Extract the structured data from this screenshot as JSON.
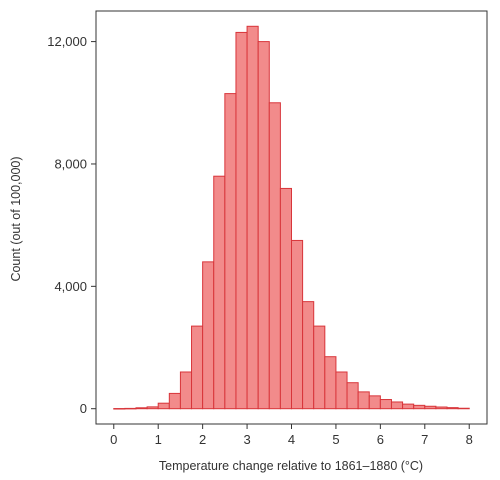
{
  "chart_data": {
    "type": "bar",
    "subtype": "histogram",
    "xlabel": "Temperature change relative to 1861–1880 (°C)",
    "ylabel": "Count (out of 100,000)",
    "xlim": [
      -0.4,
      8.4
    ],
    "ylim": [
      -500,
      13000
    ],
    "x_ticks": [
      0,
      1,
      2,
      3,
      4,
      5,
      6,
      7,
      8
    ],
    "x_tick_labels": [
      "0",
      "1",
      "2",
      "3",
      "4",
      "5",
      "6",
      "7",
      "8"
    ],
    "y_ticks": [
      0,
      4000,
      8000,
      12000
    ],
    "y_tick_labels": [
      "0",
      "4,000",
      "8,000",
      "12,000"
    ],
    "bin_width": 0.25,
    "bin_start": 0,
    "values": [
      5,
      10,
      30,
      60,
      180,
      500,
      1200,
      2700,
      4800,
      7600,
      10300,
      12300,
      12500,
      12000,
      10000,
      7200,
      5500,
      3500,
      2700,
      1700,
      1200,
      850,
      550,
      420,
      300,
      220,
      150,
      110,
      80,
      55,
      35,
      15
    ],
    "bar_fill": "#f28b8b",
    "bar_stroke": "#d8353a",
    "grid": false,
    "legend": "none"
  }
}
